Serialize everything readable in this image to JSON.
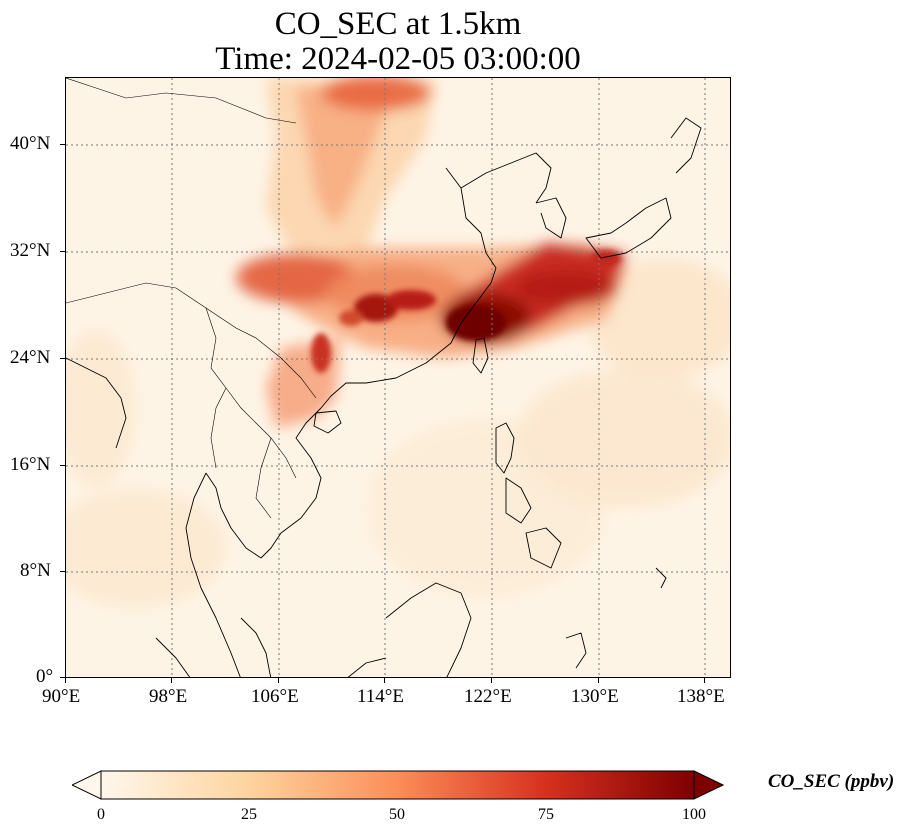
{
  "title_line1": "CO_SEC at 1.5km",
  "title_line2": "Time: 2024-02-05 03:00:00",
  "lon_ticks": [
    "90°E",
    "98°E",
    "106°E",
    "114°E",
    "122°E",
    "130°E",
    "138°E"
  ],
  "lat_ticks": [
    "40°N",
    "32°N",
    "24°N",
    "16°N",
    "8°N",
    "0°"
  ],
  "map_extent": {
    "lon": [
      90,
      139
    ],
    "lat": [
      0,
      45
    ]
  },
  "gridlines": true,
  "colorbar": {
    "label": "CO_SEC (ppbv)",
    "ticks": [
      "0",
      "25",
      "50",
      "75",
      "100"
    ],
    "range": [
      0,
      100
    ],
    "extend": "both",
    "colormap": "OrRd",
    "colors": [
      "#fff7ec",
      "#fdd49e",
      "#fc8d59",
      "#d7301f",
      "#7f0000"
    ]
  }
}
